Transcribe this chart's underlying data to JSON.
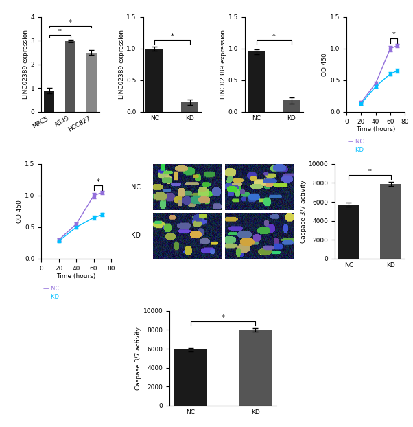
{
  "bar1_categories": [
    "MRC5",
    "A549",
    "HCC827"
  ],
  "bar1_values": [
    0.9,
    3.0,
    2.5
  ],
  "bar1_errors": [
    0.12,
    0.05,
    0.1
  ],
  "bar1_colors": [
    "#1a1a1a",
    "#555555",
    "#888888"
  ],
  "bar1_ylabel": "LINC02389 expression",
  "bar1_ylim": [
    0,
    4
  ],
  "bar1_yticks": [
    0,
    1,
    2,
    3,
    4
  ],
  "bar2_categories": [
    "NC",
    "KD"
  ],
  "bar2_values": [
    1.0,
    0.15
  ],
  "bar2_errors": [
    0.03,
    0.04
  ],
  "bar2_colors": [
    "#1a1a1a",
    "#555555"
  ],
  "bar2_ylabel": "LINC02389 expression",
  "bar2_ylim": [
    0,
    1.5
  ],
  "bar2_yticks": [
    0.0,
    0.5,
    1.0,
    1.5
  ],
  "bar3_categories": [
    "NC",
    "KD"
  ],
  "bar3_values": [
    0.95,
    0.18
  ],
  "bar3_errors": [
    0.04,
    0.05
  ],
  "bar3_colors": [
    "#1a1a1a",
    "#555555"
  ],
  "bar3_ylabel": "LINC02389 expression",
  "bar3_ylim": [
    0,
    1.5
  ],
  "bar3_yticks": [
    0.0,
    0.5,
    1.0,
    1.5
  ],
  "line1_x": [
    20,
    40,
    60,
    70
  ],
  "line1_nc": [
    0.15,
    0.45,
    1.0,
    1.05
  ],
  "line1_kd": [
    0.13,
    0.4,
    0.6,
    0.65
  ],
  "line1_nc_err": [
    0.02,
    0.03,
    0.04,
    0.03
  ],
  "line1_kd_err": [
    0.02,
    0.02,
    0.03,
    0.03
  ],
  "line1_ylabel": "OD 450",
  "line1_xlabel": "Time (hours)",
  "line1_ylim": [
    0,
    1.5
  ],
  "line1_yticks": [
    0.0,
    0.5,
    1.0,
    1.5
  ],
  "line1_xlim": [
    0,
    80
  ],
  "line1_xticks": [
    0,
    20,
    40,
    60,
    80
  ],
  "line1_nc_color": "#9370DB",
  "line1_kd_color": "#00BFFF",
  "line2_x": [
    20,
    40,
    60,
    70
  ],
  "line2_nc": [
    0.3,
    0.55,
    1.0,
    1.05
  ],
  "line2_kd": [
    0.28,
    0.5,
    0.65,
    0.7
  ],
  "line2_nc_err": [
    0.02,
    0.03,
    0.04,
    0.03
  ],
  "line2_kd_err": [
    0.02,
    0.02,
    0.03,
    0.03
  ],
  "line2_ylabel": "OD 450",
  "line2_xlabel": "Time (hours)",
  "line2_ylim": [
    0,
    1.5
  ],
  "line2_yticks": [
    0.0,
    0.5,
    1.0,
    1.5
  ],
  "line2_xlim": [
    0,
    80
  ],
  "line2_xticks": [
    0,
    20,
    40,
    60,
    80
  ],
  "line2_nc_color": "#9370DB",
  "line2_kd_color": "#00BFFF",
  "bar4_categories": [
    "NC",
    "KD"
  ],
  "bar4_values": [
    5700,
    7900
  ],
  "bar4_errors": [
    200,
    200
  ],
  "bar4_colors": [
    "#1a1a1a",
    "#555555"
  ],
  "bar4_ylabel": "Caspase 3/7 activity",
  "bar4_ylim": [
    0,
    10000
  ],
  "bar4_yticks": [
    0,
    2000,
    4000,
    6000,
    8000,
    10000
  ],
  "bar5_categories": [
    "NC",
    "KD"
  ],
  "bar5_values": [
    5900,
    8000
  ],
  "bar5_errors": [
    200,
    200
  ],
  "bar5_colors": [
    "#1a1a1a",
    "#555555"
  ],
  "bar5_ylabel": "Caspase 3/7 activity",
  "bar5_ylim": [
    0,
    10000
  ],
  "bar5_yticks": [
    0,
    2000,
    4000,
    6000,
    8000,
    10000
  ],
  "background_color": "#ffffff"
}
